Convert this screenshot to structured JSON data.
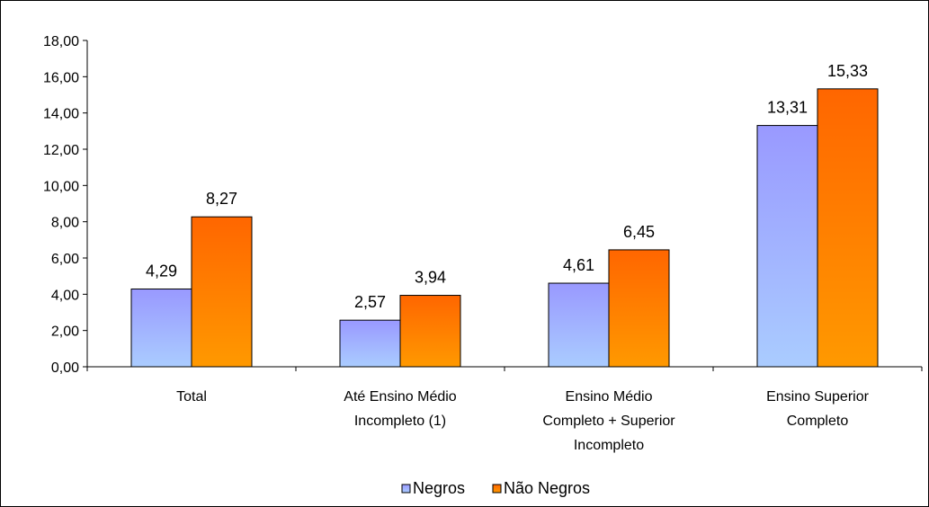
{
  "chart_data": {
    "type": "bar",
    "categories": [
      [
        "Total"
      ],
      [
        "Até Ensino Médio",
        "Incompleto (1)"
      ],
      [
        "Ensino Médio",
        "Completo + Superior",
        "Incompleto"
      ],
      [
        "Ensino Superior",
        "Completo"
      ]
    ],
    "series": [
      {
        "name": "Negros",
        "values": [
          4.29,
          2.57,
          4.61,
          13.31
        ],
        "labels": [
          "4,29",
          "2,57",
          "4,61",
          "13,31"
        ]
      },
      {
        "name": "Não Negros",
        "values": [
          8.27,
          3.94,
          6.45,
          15.33
        ],
        "labels": [
          "8,27",
          "3,94",
          "6,45",
          "15,33"
        ]
      }
    ],
    "ylim": [
      0,
      18
    ],
    "yticks": [
      "0,00",
      "2,00",
      "4,00",
      "6,00",
      "8,00",
      "10,00",
      "12,00",
      "14,00",
      "16,00",
      "18,00"
    ],
    "title": "",
    "xlabel": "",
    "ylabel": "",
    "legend": "bottom-center",
    "grid": false,
    "colors": {
      "Negros": {
        "top": "#9999ff",
        "bottom": "#aaccff",
        "stroke": "#000000"
      },
      "Não Negros": {
        "top": "#ff6600",
        "bottom": "#ff9900",
        "stroke": "#000000"
      }
    }
  }
}
